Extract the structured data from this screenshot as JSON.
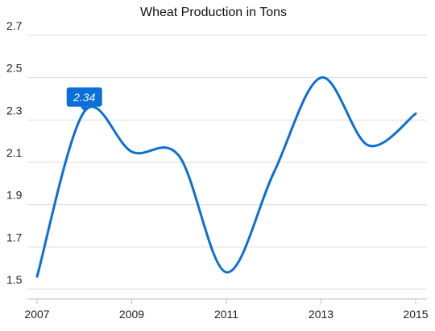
{
  "chart_data": {
    "type": "line",
    "title": "Wheat Production in Tons",
    "xlabel": "",
    "ylabel": "",
    "x": [
      2007,
      2008,
      2009,
      2010,
      2011,
      2012,
      2013,
      2014,
      2015
    ],
    "x_ticks": [
      "2007",
      "2009",
      "2011",
      "2013",
      "2015"
    ],
    "xlim": [
      2007,
      2015
    ],
    "ylim": [
      1.5,
      2.7
    ],
    "y_ticks": [
      "1.5",
      "1.7",
      "1.9",
      "2.1",
      "2.3",
      "2.5",
      "2.7"
    ],
    "series": [
      {
        "values": [
          1.56,
          2.34,
          2.15,
          2.13,
          1.58,
          2.05,
          2.5,
          2.18,
          2.33
        ],
        "color": "#0a6fd6"
      }
    ],
    "grid": "horizontal",
    "smooth": true,
    "tooltip": {
      "x": 2008,
      "value": 2.34,
      "label": "2.34",
      "color": "#0a6fd6"
    }
  }
}
